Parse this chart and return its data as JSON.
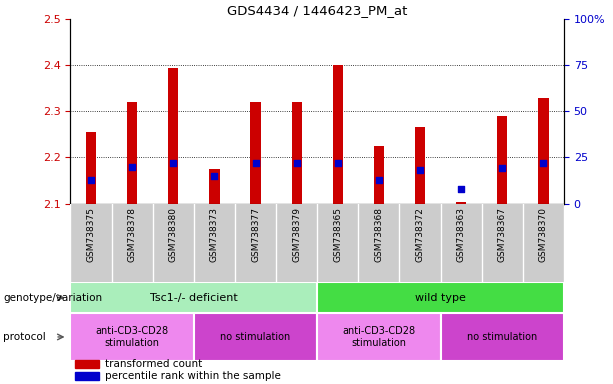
{
  "title": "GDS4434 / 1446423_PM_at",
  "samples": [
    "GSM738375",
    "GSM738378",
    "GSM738380",
    "GSM738373",
    "GSM738377",
    "GSM738379",
    "GSM738365",
    "GSM738368",
    "GSM738372",
    "GSM738363",
    "GSM738367",
    "GSM738370"
  ],
  "transformed_count": [
    2.255,
    2.32,
    2.395,
    2.175,
    2.32,
    2.32,
    2.4,
    2.225,
    2.265,
    2.103,
    2.29,
    2.33
  ],
  "percentile_pct": [
    13,
    20,
    22,
    15,
    22,
    22,
    22,
    13,
    18,
    8,
    19,
    22
  ],
  "ylim_left": [
    2.1,
    2.5
  ],
  "ylim_right": [
    0,
    100
  ],
  "yticks_left": [
    2.1,
    2.2,
    2.3,
    2.4,
    2.5
  ],
  "yticks_right_vals": [
    0,
    25,
    50,
    75,
    100
  ],
  "yticks_right_labels": [
    "0",
    "25",
    "50",
    "75",
    "100%"
  ],
  "bar_color": "#cc0000",
  "dot_color": "#0000cc",
  "bar_bottom": 2.1,
  "bar_width": 0.7,
  "group1_label": "Tsc1-/- deficient",
  "group2_label": "wild type",
  "group1_color": "#aaeebb",
  "group2_color": "#44dd44",
  "protocol1_label": "anti-CD3-CD28\nstimulation",
  "protocol2_label": "no stimulation",
  "protocol3_label": "anti-CD3-CD28\nstimulation",
  "protocol4_label": "no stimulation",
  "protocol_stim_color": "#ee88ee",
  "protocol_nostim_color": "#cc44cc",
  "legend_bar_label": "transformed count",
  "legend_dot_label": "percentile rank within the sample",
  "genotype_label": "genotype/variation",
  "protocol_label": "protocol",
  "tick_label_color": "#cc0000",
  "right_tick_color": "#0000cc",
  "bg_color": "#dddddd",
  "xtick_bg_color": "#cccccc"
}
